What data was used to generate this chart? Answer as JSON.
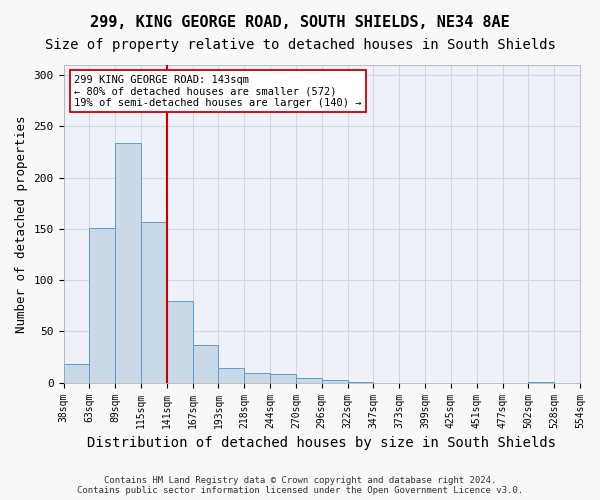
{
  "title1": "299, KING GEORGE ROAD, SOUTH SHIELDS, NE34 8AE",
  "title2": "Size of property relative to detached houses in South Shields",
  "xlabel": "Distribution of detached houses by size in South Shields",
  "ylabel": "Number of detached properties",
  "footnote": "Contains HM Land Registry data © Crown copyright and database right 2024.\nContains public sector information licensed under the Open Government Licence v3.0.",
  "bin_labels": [
    "38sqm",
    "63sqm",
    "89sqm",
    "115sqm",
    "141sqm",
    "167sqm",
    "193sqm",
    "218sqm",
    "244sqm",
    "270sqm",
    "296sqm",
    "322sqm",
    "347sqm",
    "373sqm",
    "399sqm",
    "425sqm",
    "451sqm",
    "477sqm",
    "502sqm",
    "528sqm",
    "554sqm"
  ],
  "bar_values": [
    18,
    151,
    234,
    157,
    80,
    37,
    14,
    9,
    8,
    5,
    3,
    1,
    0,
    0,
    0,
    0,
    0,
    0,
    1,
    0
  ],
  "bar_color": "#c9d9e8",
  "bar_edge_color": "#5b9bd5",
  "vline_color": "#cc0000",
  "vline_bin_index": 4,
  "annotation_text": "299 KING GEORGE ROAD: 143sqm\n← 80% of detached houses are smaller (572)\n19% of semi-detached houses are larger (140) →",
  "annotation_box_color": "#ffffff",
  "annotation_box_edge": "#cc0000",
  "ylim": [
    0,
    310
  ],
  "yticks": [
    0,
    50,
    100,
    150,
    200,
    250,
    300
  ],
  "grid_color": "#d0d8e8",
  "bg_color": "#eef2f8",
  "fig_bg_color": "#f8f8f8",
  "title1_fontsize": 11,
  "title2_fontsize": 10,
  "xlabel_fontsize": 10,
  "ylabel_fontsize": 9,
  "tick_fontsize": 7,
  "annot_fontsize": 7.5,
  "footnote_fontsize": 6.5
}
